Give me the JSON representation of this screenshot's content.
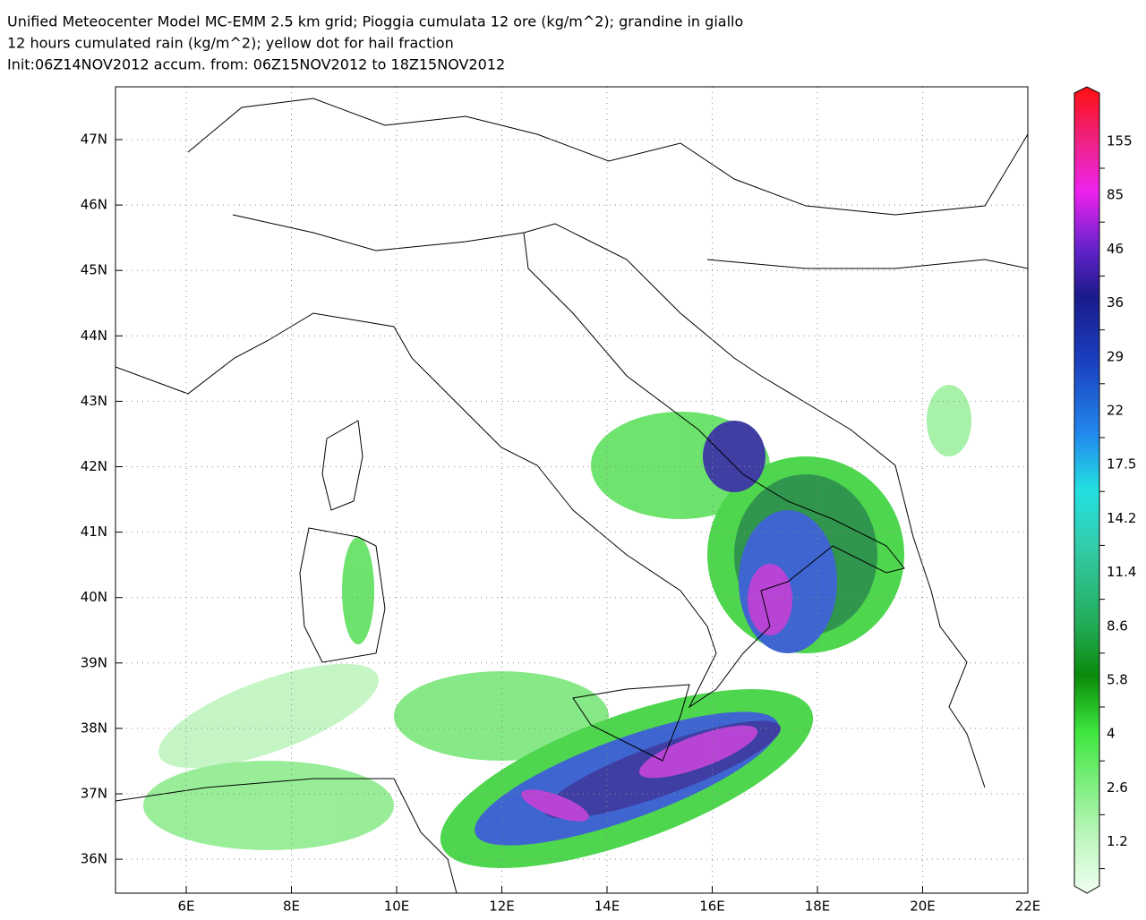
{
  "header": {
    "lines": [
      "Unified Meteocenter Model MC-EMM 2.5 km grid; Pioggia cumulata 12 ore (kg/m^2); grandine in giallo",
      "12 hours cumulated rain (kg/m^2); yellow dot for hail fraction",
      "Init:06Z14NOV2012 accum. from: 06Z15NOV2012 to 18Z15NOV2012"
    ]
  },
  "map": {
    "lon_ticks": [
      "6E",
      "8E",
      "10E",
      "12E",
      "14E",
      "16E",
      "18E",
      "20E",
      "22E"
    ],
    "lat_ticks": [
      "47N",
      "46N",
      "45N",
      "44N",
      "43N",
      "42N",
      "41N",
      "40N",
      "39N",
      "38N",
      "37N",
      "36N"
    ]
  },
  "colorbar": {
    "labels": [
      155,
      85,
      46,
      36,
      29,
      22,
      17.5,
      14.2,
      11.4,
      8.6,
      5.8,
      4,
      2.6,
      1.2
    ]
  }
}
